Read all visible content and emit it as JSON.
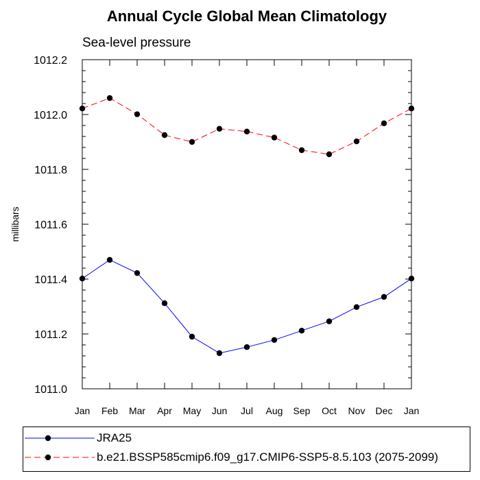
{
  "chart_data": {
    "type": "line",
    "title": "Annual Cycle Global Mean Climatology",
    "subtitle": "Sea-level pressure",
    "xlabel": "",
    "ylabel": "millibars",
    "categories": [
      "Jan",
      "Feb",
      "Mar",
      "Apr",
      "May",
      "Jun",
      "Jul",
      "Aug",
      "Sep",
      "Oct",
      "Nov",
      "Dec",
      "Jan"
    ],
    "ylim": [
      1011.0,
      1012.2
    ],
    "yticks": [
      "1011.0",
      "1011.2",
      "1011.4",
      "1011.6",
      "1011.8",
      "1012.0",
      "1012.2"
    ],
    "series": [
      {
        "name": "JRA25",
        "color": "#0000ff",
        "dash": "solid",
        "marker": "circle",
        "values": [
          1011.402,
          1011.47,
          1011.422,
          1011.312,
          1011.19,
          1011.13,
          1011.152,
          1011.178,
          1011.212,
          1011.246,
          1011.298,
          1011.335,
          1011.402
        ]
      },
      {
        "name": "b.e21.BSSP585cmip6.f09_g17.CMIP6-SSP5-8.5.103 (2075-2099)",
        "color": "#ff0000",
        "dash": "dashed",
        "marker": "circle",
        "values": [
          1012.022,
          1012.06,
          1012.001,
          1011.925,
          1011.9,
          1011.948,
          1011.938,
          1011.916,
          1011.87,
          1011.855,
          1011.902,
          1011.968,
          1012.022
        ]
      }
    ],
    "legend_position": "bottom"
  }
}
